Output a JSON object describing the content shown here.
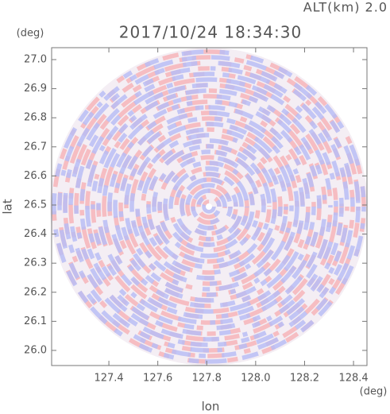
{
  "chart_data": {
    "type": "ppi",
    "title": "2017/10/24 18:34:30",
    "subtitle": "ALT(km) 2.0",
    "x_label": "lon",
    "y_label": "lat",
    "x_unit": "(deg)",
    "y_unit": "(deg)",
    "xlim": [
      127.166,
      128.455
    ],
    "ylim": [
      25.948,
      27.041
    ],
    "xticks": [
      127.4,
      127.6,
      127.8,
      {
        "value": 128.0,
        "label": "128.0"
      },
      128.2,
      128.4
    ],
    "yticks": [
      {
        "value": 26.0,
        "label": "26.0"
      },
      26.1,
      26.2,
      26.3,
      26.4,
      26.5,
      26.6,
      26.7,
      26.8,
      26.9,
      {
        "value": 27.0,
        "label": "27.0"
      }
    ]
  }
}
